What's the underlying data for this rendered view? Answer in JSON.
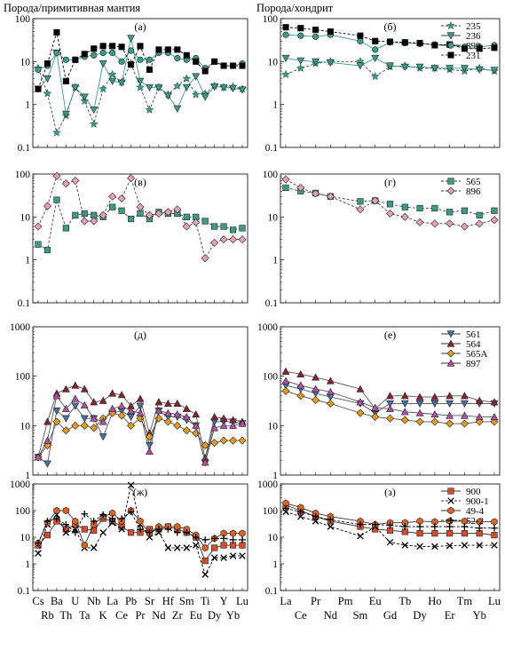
{
  "headers": {
    "left": "Порода/примитивная мантия",
    "right": "Порода/хондрит"
  },
  "axes": {
    "spider_top": [
      "Cs",
      "Ba",
      "U",
      "Nb",
      "La",
      "Pb",
      "Sr",
      "Hf",
      "Sm",
      "Ti",
      "Y",
      "Lu"
    ],
    "spider_bottom": [
      "Rb",
      "Th",
      "Ta",
      "K",
      "Ce",
      "Pr",
      "Nd",
      "Zr",
      "Eu",
      "Dy",
      "Yb"
    ],
    "ree_top": [
      "La",
      "Pr",
      "Pm",
      "Eu",
      "Tb",
      "Ho",
      "Tm",
      "Lu"
    ],
    "ree_bottom": [
      "Ce",
      "Nd",
      "Sm",
      "Gd",
      "Dy",
      "Er",
      "Yb"
    ]
  },
  "chart_data": [
    {
      "id": "a",
      "panel_label": "(а)",
      "type": "line",
      "x": [
        "Cs",
        "Rb",
        "Ba",
        "Th",
        "U",
        "Ta",
        "Nb",
        "K",
        "La",
        "Ce",
        "Pb",
        "Pr",
        "Sr",
        "Nd",
        "Hf",
        "Zr",
        "Sm",
        "Eu",
        "Ti",
        "Dy",
        "Y",
        "Yb",
        "Lu"
      ],
      "y_scale": "log",
      "ylim": [
        0.1,
        100
      ],
      "series": [
        {
          "name": "235",
          "marker": "star",
          "color": "#3a9c86",
          "dash": true,
          "values": [
            7,
            1.8,
            0.22,
            0.55,
            2.5,
            1.2,
            0.35,
            2.3,
            5,
            3.3,
            9,
            2.5,
            0.75,
            2.5,
            1.7,
            2.7,
            4,
            1.7,
            1.8,
            2.7,
            2.5,
            2.6,
            2.3
          ]
        },
        {
          "name": "236",
          "marker": "tri-down",
          "color": "#3a9c86",
          "dash": false,
          "values": [
            2.3,
            4,
            16,
            0.6,
            2.5,
            1.5,
            0.75,
            9,
            3.5,
            3.2,
            35,
            3.5,
            2.5,
            2.5,
            1.6,
            0.8,
            2.5,
            4.5,
            1.5,
            2.6,
            2.5,
            2.4,
            2.2
          ]
        },
        {
          "name": "899",
          "marker": "circle",
          "color": "#3a9c86",
          "dash": false,
          "values": [
            6.5,
            8,
            16,
            11,
            11,
            13,
            14,
            16,
            16,
            10,
            18,
            11,
            11,
            16,
            16,
            12,
            11,
            12,
            7,
            10,
            8,
            8,
            9
          ]
        },
        {
          "name": "231",
          "marker": "square",
          "color": "#000000",
          "dash": true,
          "values": [
            2.3,
            9,
            48,
            3.5,
            11,
            15,
            20,
            23,
            23,
            22,
            8.5,
            23,
            6.5,
            19,
            19,
            19,
            14,
            10,
            6,
            10,
            8,
            8,
            8
          ]
        }
      ]
    },
    {
      "id": "b",
      "panel_label": "(б)",
      "type": "line",
      "x": [
        "La",
        "Ce",
        "Pr",
        "Nd",
        "Pm",
        "Sm",
        "Eu",
        "Gd",
        "Tb",
        "Dy",
        "Ho",
        "Er",
        "Tm",
        "Yb",
        "Lu"
      ],
      "y_scale": "log",
      "ylim": [
        0.1,
        100
      ],
      "series": [
        {
          "name": "235",
          "marker": "star",
          "values": [
            5,
            7,
            9,
            10,
            null,
            10,
            4.5,
            7.5,
            8,
            7,
            7,
            6.5,
            6,
            7,
            6
          ]
        },
        {
          "name": "236",
          "marker": "tri-down",
          "values": [
            12,
            10.5,
            10,
            9.5,
            null,
            8,
            12,
            8,
            7.5,
            7.5,
            7,
            7,
            7,
            6.5,
            6.3
          ]
        },
        {
          "name": "899",
          "marker": "circle",
          "values": [
            42,
            40,
            38,
            42,
            null,
            30,
            19,
            28,
            27,
            26,
            25,
            24,
            22,
            22,
            24
          ]
        },
        {
          "name": "231",
          "marker": "square",
          "values": [
            63,
            60,
            55,
            50,
            null,
            40,
            30,
            29,
            28,
            27,
            24,
            25,
            20,
            20,
            21
          ]
        }
      ]
    },
    {
      "id": "v",
      "panel_label": "(в)",
      "type": "line",
      "x": [
        "Cs",
        "Rb",
        "Ba",
        "Th",
        "U",
        "Ta",
        "Nb",
        "K",
        "La",
        "Ce",
        "Pb",
        "Pr",
        "Sr",
        "Nd",
        "Hf",
        "Zr",
        "Sm",
        "Eu",
        "Ti",
        "Dy",
        "Y",
        "Yb",
        "Lu"
      ],
      "y_scale": "log",
      "ylim": [
        0.1,
        100
      ],
      "series": [
        {
          "name": "565",
          "marker": "square",
          "values": [
            2.3,
            1.7,
            25,
            5.5,
            11,
            12,
            11,
            10,
            17,
            14,
            9,
            12,
            9,
            13,
            12,
            12,
            10,
            10,
            8,
            6,
            6,
            5,
            5.5
          ]
        },
        {
          "name": "896",
          "marker": "diamond",
          "values": [
            6,
            18,
            90,
            60,
            70,
            8,
            8,
            11,
            30,
            27,
            80,
            17,
            11,
            12,
            13,
            15,
            6,
            7.5,
            1.1,
            2.5,
            3,
            3,
            3
          ]
        }
      ]
    },
    {
      "id": "g",
      "panel_label": "(г)",
      "type": "line",
      "x": [
        "La",
        "Ce",
        "Pr",
        "Nd",
        "Pm",
        "Sm",
        "Eu",
        "Gd",
        "Tb",
        "Dy",
        "Ho",
        "Er",
        "Tm",
        "Yb",
        "Lu"
      ],
      "y_scale": "log",
      "ylim": [
        0.1,
        100
      ],
      "series": [
        {
          "name": "565",
          "marker": "square",
          "values": [
            48,
            40,
            36,
            30,
            null,
            23,
            24,
            20,
            17,
            16,
            16,
            13,
            14,
            11,
            14
          ]
        },
        {
          "name": "896",
          "marker": "diamond",
          "values": [
            75,
            48,
            35,
            30,
            null,
            15,
            24,
            12,
            10,
            7.5,
            7,
            7,
            6,
            7,
            8.5
          ]
        }
      ]
    },
    {
      "id": "d",
      "panel_label": "(д)",
      "type": "line",
      "x": [
        "Cs",
        "Rb",
        "Ba",
        "Th",
        "U",
        "Ta",
        "Nb",
        "K",
        "La",
        "Ce",
        "Pb",
        "Pr",
        "Sr",
        "Nd",
        "Hf",
        "Zr",
        "Sm",
        "Eu",
        "Ti",
        "Dy",
        "Y",
        "Yb",
        "Lu"
      ],
      "y_scale": "log",
      "ylim": [
        1,
        1000
      ],
      "series": [
        {
          "name": "561",
          "marker": "tri-down",
          "color": "#4a6fae",
          "values": [
            2.3,
            1.7,
            20,
            14,
            25,
            14,
            14,
            6,
            18,
            20,
            15,
            25,
            4,
            20,
            15,
            15,
            13,
            10,
            1.8,
            12,
            12,
            12,
            11
          ]
        },
        {
          "name": "564",
          "marker": "triangle",
          "color": "#8b2232",
          "values": [
            2.3,
            12,
            45,
            55,
            65,
            55,
            30,
            32,
            45,
            42,
            25,
            35,
            7,
            30,
            28,
            28,
            22,
            17,
            2.2,
            15,
            14,
            13,
            12
          ]
        },
        {
          "name": "565A",
          "marker": "diamond",
          "color": "#e69a1a",
          "values": [
            2.3,
            4,
            12,
            8,
            10,
            10,
            9,
            14,
            18,
            16,
            10,
            14,
            6,
            14,
            12,
            10,
            8,
            7,
            4,
            4.5,
            5,
            5,
            5
          ]
        },
        {
          "name": "897",
          "marker": "triangle",
          "color": "#b44fa6",
          "values": [
            2.3,
            5,
            40,
            22,
            35,
            26,
            14,
            12,
            22,
            25,
            20,
            18,
            3,
            20,
            18,
            17,
            15,
            10,
            1.8,
            9,
            10,
            10,
            11
          ]
        }
      ]
    },
    {
      "id": "e",
      "panel_label": "(е)",
      "type": "line",
      "x": [
        "La",
        "Ce",
        "Pr",
        "Nd",
        "Pm",
        "Sm",
        "Eu",
        "Gd",
        "Tb",
        "Dy",
        "Ho",
        "Er",
        "Tm",
        "Yb",
        "Lu"
      ],
      "y_scale": "log",
      "ylim": [
        1,
        1000
      ],
      "series": [
        {
          "name": "561",
          "marker": "tri-down",
          "values": [
            65,
            55,
            45,
            38,
            null,
            28,
            18,
            28,
            28,
            28,
            28,
            28,
            28,
            28,
            28
          ]
        },
        {
          "name": "564",
          "marker": "triangle",
          "values": [
            125,
            110,
            95,
            80,
            null,
            55,
            22,
            40,
            40,
            38,
            38,
            40,
            40,
            32,
            30
          ]
        },
        {
          "name": "565A",
          "marker": "diamond",
          "values": [
            50,
            40,
            33,
            28,
            null,
            18,
            15,
            14,
            13,
            12,
            12,
            11,
            11,
            12,
            12
          ]
        },
        {
          "name": "897",
          "marker": "triangle",
          "values": [
            80,
            65,
            55,
            48,
            null,
            30,
            23,
            22,
            19,
            18,
            17,
            16,
            16,
            15,
            15
          ]
        }
      ]
    },
    {
      "id": "zh",
      "panel_label": "(ж)",
      "type": "line",
      "x": [
        "Cs",
        "Rb",
        "Ba",
        "Th",
        "U",
        "Ta",
        "Nb",
        "K",
        "La",
        "Ce",
        "Pb",
        "Pr",
        "Sr",
        "Nd",
        "Hf",
        "Zr",
        "Sm",
        "Eu",
        "Ti",
        "Dy",
        "Y",
        "Yb",
        "Lu"
      ],
      "y_scale": "log",
      "ylim": [
        0.1,
        1000
      ],
      "series": [
        {
          "name": "900",
          "marker": "square",
          "color": "#d94a2b",
          "values": [
            5,
            12,
            40,
            20,
            30,
            20,
            18,
            50,
            40,
            25,
            15,
            15,
            20,
            20,
            25,
            20,
            15,
            10,
            1.3,
            4,
            5,
            5,
            5
          ]
        },
        {
          "name": "900-1",
          "marker": "x",
          "color": "#000000",
          "values": [
            2.5,
            30,
            70,
            15,
            20,
            4,
            4,
            15,
            35,
            20,
            900,
            30,
            10,
            15,
            4,
            4,
            4,
            5,
            0.4,
            1.7,
            1.7,
            2,
            2
          ]
        },
        {
          "name": "49-4",
          "marker": "hexagon",
          "color": "#e06020",
          "values": [
            6,
            35,
            100,
            100,
            40,
            5,
            30,
            60,
            80,
            40,
            100,
            40,
            14,
            25,
            25,
            25,
            20,
            12,
            4,
            9,
            14,
            14,
            14
          ]
        },
        {
          "name": "52-2",
          "marker": "plus",
          "color": "#000000",
          "values": [
            6,
            40,
            50,
            30,
            15,
            75,
            40,
            70,
            50,
            50,
            90,
            20,
            15,
            20,
            20,
            15,
            15,
            10,
            8,
            9,
            9,
            8,
            8
          ]
        }
      ]
    },
    {
      "id": "z",
      "panel_label": "(з)",
      "type": "line",
      "x": [
        "La",
        "Ce",
        "Pr",
        "Nd",
        "Pm",
        "Sm",
        "Eu",
        "Gd",
        "Tb",
        "Dy",
        "Ho",
        "Er",
        "Tm",
        "Yb",
        "Lu"
      ],
      "y_scale": "log",
      "ylim": [
        0.1,
        1000
      ],
      "series": [
        {
          "name": "900",
          "marker": "square",
          "values": [
            160,
            100,
            60,
            40,
            null,
            25,
            20,
            18,
            16,
            14,
            14,
            14,
            14,
            14,
            12
          ]
        },
        {
          "name": "900-1",
          "marker": "x",
          "values": [
            90,
            60,
            40,
            25,
            null,
            11,
            25,
            6.5,
            5,
            4.5,
            4.5,
            4.8,
            5,
            5,
            5
          ]
        },
        {
          "name": "49-4",
          "marker": "hexagon",
          "values": [
            190,
            130,
            80,
            60,
            null,
            40,
            30,
            35,
            35,
            40,
            38,
            40,
            40,
            38,
            38
          ]
        },
        {
          "name": "52-2",
          "marker": "plus",
          "values": [
            120,
            90,
            60,
            45,
            null,
            30,
            30,
            28,
            25,
            25,
            25,
            25,
            25,
            22,
            22
          ]
        }
      ]
    }
  ]
}
